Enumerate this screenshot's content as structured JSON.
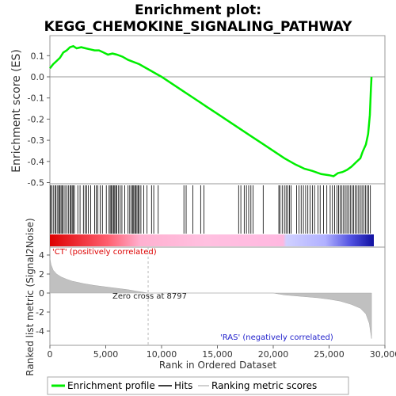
{
  "title_line1": "Enrichment plot:",
  "title_line2": "KEGG_CHEMOKINE_SIGNALING_PATHWAY",
  "colors": {
    "es_line": "#00ee00",
    "hit": "#000000",
    "metric_fill": "#c0c0c0",
    "pos_label": "#dd0000",
    "neg_label": "#2222cc",
    "zero_cross_line": "#bbbbbb"
  },
  "chart_data": [
    {
      "type": "line",
      "name": "enrichment-score",
      "ylabel": "Enrichment score (ES)",
      "ylim": [
        -0.5,
        0.17
      ],
      "yticks": [
        0.1,
        0.0,
        -0.1,
        -0.2,
        -0.3,
        -0.4,
        -0.5
      ],
      "ytick_labels": [
        "0.1",
        "0.0",
        "-0.1",
        "-0.2",
        "-0.3",
        "-0.4",
        "-0.5"
      ],
      "xlim": [
        0,
        30000
      ],
      "points": [
        [
          0,
          0.04
        ],
        [
          300,
          0.06
        ],
        [
          600,
          0.075
        ],
        [
          900,
          0.09
        ],
        [
          1200,
          0.115
        ],
        [
          1500,
          0.125
        ],
        [
          1800,
          0.14
        ],
        [
          2100,
          0.145
        ],
        [
          2400,
          0.135
        ],
        [
          2800,
          0.14
        ],
        [
          3200,
          0.135
        ],
        [
          3600,
          0.13
        ],
        [
          4000,
          0.125
        ],
        [
          4400,
          0.125
        ],
        [
          4800,
          0.115
        ],
        [
          5200,
          0.105
        ],
        [
          5600,
          0.11
        ],
        [
          6000,
          0.105
        ],
        [
          6500,
          0.095
        ],
        [
          7000,
          0.08
        ],
        [
          7500,
          0.07
        ],
        [
          8000,
          0.06
        ],
        [
          8500,
          0.045
        ],
        [
          9000,
          0.03
        ],
        [
          9500,
          0.015
        ],
        [
          10000,
          0.0
        ],
        [
          11000,
          -0.035
        ],
        [
          12000,
          -0.07
        ],
        [
          13000,
          -0.105
        ],
        [
          14000,
          -0.14
        ],
        [
          15000,
          -0.175
        ],
        [
          16000,
          -0.21
        ],
        [
          17000,
          -0.245
        ],
        [
          18000,
          -0.28
        ],
        [
          19000,
          -0.315
        ],
        [
          20000,
          -0.35
        ],
        [
          21000,
          -0.385
        ],
        [
          22000,
          -0.415
        ],
        [
          22800,
          -0.435
        ],
        [
          23500,
          -0.445
        ],
        [
          24300,
          -0.46
        ],
        [
          25000,
          -0.465
        ],
        [
          25400,
          -0.47
        ],
        [
          25800,
          -0.455
        ],
        [
          26200,
          -0.45
        ],
        [
          26600,
          -0.44
        ],
        [
          27000,
          -0.425
        ],
        [
          27400,
          -0.405
        ],
        [
          27800,
          -0.385
        ],
        [
          28000,
          -0.355
        ],
        [
          28300,
          -0.32
        ],
        [
          28500,
          -0.27
        ],
        [
          28650,
          -0.18
        ],
        [
          28750,
          -0.05
        ],
        [
          28800,
          0.0
        ]
      ]
    },
    {
      "type": "bar",
      "name": "gene-set-hits",
      "xlim": [
        0,
        30000
      ],
      "hit_ranks": [
        60,
        150,
        300,
        450,
        550,
        700,
        800,
        900,
        1000,
        1100,
        1200,
        1350,
        1500,
        1650,
        1800,
        1900,
        2000,
        2100,
        2200,
        2500,
        2700,
        3000,
        3150,
        3300,
        3450,
        3650,
        4000,
        4150,
        4300,
        4500,
        4700,
        5050,
        5300,
        5400,
        5500,
        5600,
        5700,
        5800,
        5900,
        6000,
        6150,
        6300,
        6450,
        6700,
        7000,
        7150,
        7300,
        7400,
        7500,
        7600,
        7700,
        7800,
        7900,
        8000,
        8150,
        8400,
        8700,
        9100,
        9300,
        9700,
        12000,
        12200,
        12800,
        13500,
        13800,
        16900,
        17100,
        17400,
        17600,
        17800,
        18000,
        18200,
        19100,
        20500,
        20600,
        20800,
        21000,
        21150,
        21300,
        21450,
        21600,
        22100,
        22300,
        22500,
        22700,
        22900,
        23100,
        23300,
        23500,
        23700,
        24000,
        24200,
        24500,
        24800,
        25100,
        25300,
        25500,
        25700,
        25850,
        26000,
        26150,
        26300,
        26450,
        26600,
        26750,
        26900,
        27050,
        27200,
        27350,
        27500,
        27650,
        27800,
        27950,
        28100,
        28250,
        28400,
        28550,
        28700
      ]
    },
    {
      "type": "area",
      "name": "ranked-list-metric",
      "ylabel": "Ranked list metric (Signal2Noise)",
      "xlabel": "Rank in Ordered Dataset",
      "ylim": [
        -5,
        4
      ],
      "yticks": [
        4,
        2,
        0,
        -2,
        -4
      ],
      "ytick_labels": [
        "4",
        "2",
        "0",
        "-2",
        "-4"
      ],
      "xlim": [
        0,
        30000
      ],
      "xticks": [
        0,
        5000,
        10000,
        15000,
        20000,
        25000,
        30000
      ],
      "xtick_labels": [
        "0",
        "5,000",
        "10,000",
        "15,000",
        "20,000",
        "25,000",
        "30,000"
      ],
      "points": [
        [
          0,
          3.7
        ],
        [
          100,
          3.0
        ],
        [
          300,
          2.4
        ],
        [
          600,
          2.0
        ],
        [
          1000,
          1.7
        ],
        [
          1500,
          1.45
        ],
        [
          2000,
          1.25
        ],
        [
          3000,
          1.0
        ],
        [
          4000,
          0.8
        ],
        [
          5000,
          0.65
        ],
        [
          6000,
          0.5
        ],
        [
          7000,
          0.35
        ],
        [
          8000,
          0.15
        ],
        [
          8797,
          0.0
        ],
        [
          10000,
          0.0
        ],
        [
          15000,
          0.0
        ],
        [
          20000,
          0.0
        ],
        [
          21000,
          -0.2
        ],
        [
          22000,
          -0.3
        ],
        [
          23000,
          -0.4
        ],
        [
          24000,
          -0.5
        ],
        [
          25000,
          -0.65
        ],
        [
          26000,
          -0.85
        ],
        [
          27000,
          -1.2
        ],
        [
          27800,
          -1.6
        ],
        [
          28300,
          -2.2
        ],
        [
          28600,
          -3.2
        ],
        [
          28800,
          -4.8
        ]
      ],
      "zero_cross_rank": 8797,
      "zero_cross_label": "Zero cross at 8797",
      "pos_label": "'CT' (positively correlated)",
      "neg_label": "'RAS' (negatively correlated)"
    }
  ],
  "legend": {
    "items": [
      {
        "label": "Enrichment profile",
        "style": "green-line"
      },
      {
        "label": "Hits",
        "style": "black-line"
      },
      {
        "label": "Ranking metric scores",
        "style": "gray-line"
      }
    ]
  }
}
